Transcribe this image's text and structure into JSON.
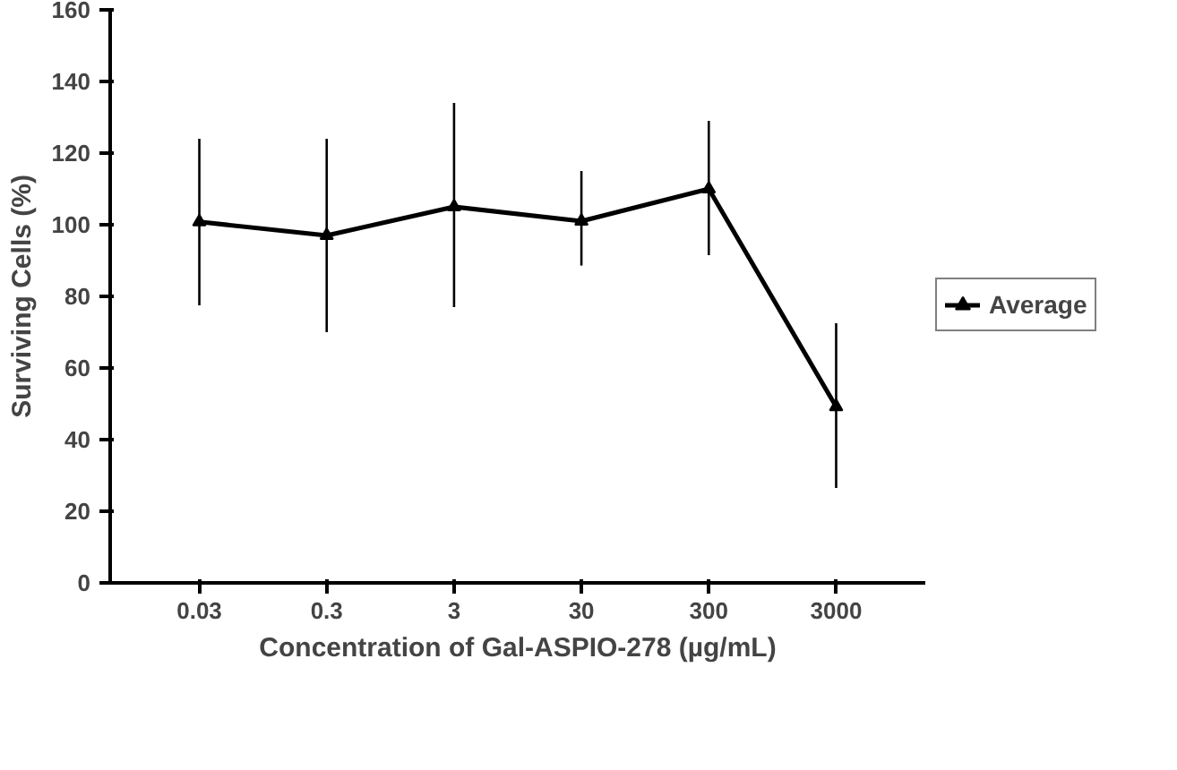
{
  "chart_data": {
    "type": "line",
    "xlabel": "Concentration of Gal-ASPIO-278 (µg/mL)",
    "ylabel": "Surviving Cells (%)",
    "categories": [
      "0.03",
      "0.3",
      "3",
      "30",
      "300",
      "3000"
    ],
    "series": [
      {
        "name": "Average",
        "color": "#000000",
        "values": [
          100.8,
          97,
          105,
          101,
          110,
          49.2
        ],
        "errors": [
          [
            77.5,
            124
          ],
          [
            70,
            124
          ],
          [
            77,
            134
          ],
          [
            88.6,
            115
          ],
          [
            91.5,
            129
          ],
          [
            26.5,
            72.5
          ]
        ]
      }
    ],
    "ylim": [
      0,
      160
    ],
    "yticks": [
      0,
      20,
      40,
      60,
      80,
      100,
      120,
      140,
      160
    ],
    "grid": false,
    "legend": "right",
    "marker": "triangle",
    "line_style": "solid"
  }
}
